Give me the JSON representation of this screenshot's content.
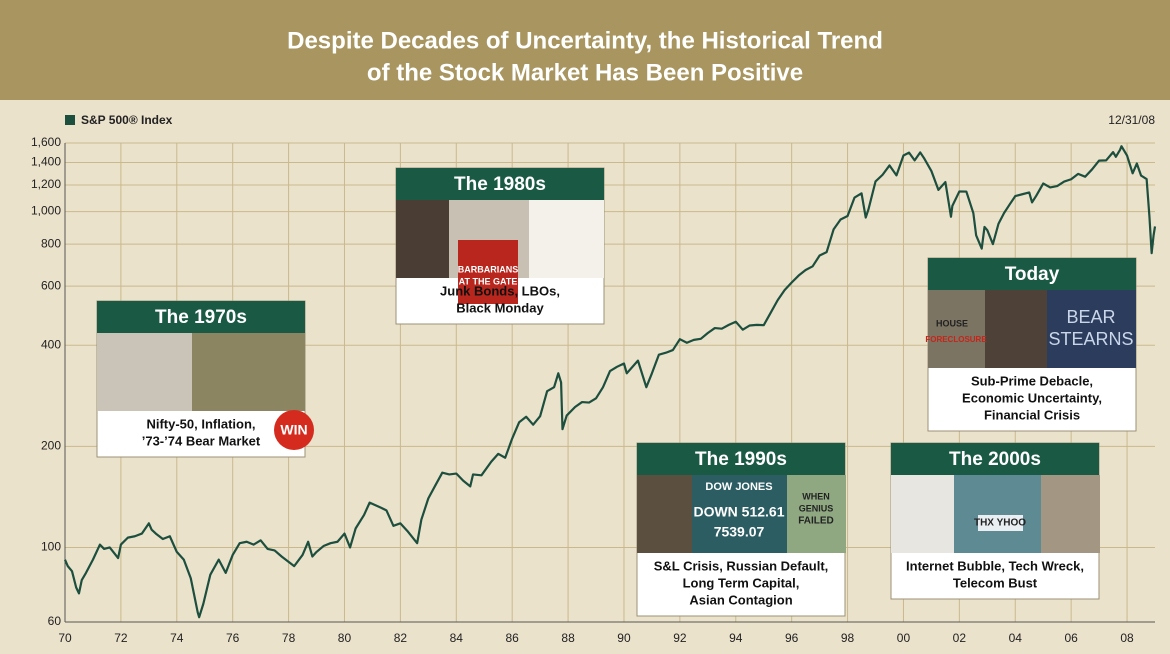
{
  "chart_data": {
    "type": "line",
    "title": [
      "Despite Decades of Uncertainty, the Historical Trend",
      "of the Stock Market Has Been Positive"
    ],
    "date_label": "12/31/08",
    "log_scale": true,
    "grid": true,
    "x": [
      1970.0,
      1970.1,
      1970.25,
      1970.4,
      1970.5,
      1970.6,
      1970.75,
      1971.0,
      1971.25,
      1971.4,
      1971.6,
      1971.9,
      1972.0,
      1972.25,
      1972.5,
      1972.75,
      1973.0,
      1973.1,
      1973.25,
      1973.5,
      1973.75,
      1974.0,
      1974.25,
      1974.5,
      1974.75,
      1974.8,
      1974.95,
      1975.2,
      1975.5,
      1975.75,
      1976.0,
      1976.25,
      1976.5,
      1976.75,
      1977.0,
      1977.25,
      1977.5,
      1977.75,
      1978.2,
      1978.5,
      1978.7,
      1978.85,
      1979.0,
      1979.25,
      1979.5,
      1979.75,
      1980.0,
      1980.2,
      1980.4,
      1980.7,
      1980.9,
      1981.25,
      1981.5,
      1981.75,
      1982.0,
      1982.25,
      1982.6,
      1982.75,
      1983.0,
      1983.25,
      1983.5,
      1983.75,
      1984.0,
      1984.25,
      1984.5,
      1984.6,
      1984.9,
      1985.25,
      1985.5,
      1985.75,
      1986.0,
      1986.25,
      1986.5,
      1986.75,
      1987.0,
      1987.25,
      1987.5,
      1987.65,
      1987.75,
      1987.8,
      1987.95,
      1988.25,
      1988.5,
      1988.75,
      1989.0,
      1989.25,
      1989.5,
      1989.75,
      1990.0,
      1990.1,
      1990.5,
      1990.8,
      1991.0,
      1991.25,
      1991.5,
      1991.75,
      1992.0,
      1992.25,
      1992.5,
      1992.75,
      1993.0,
      1993.25,
      1993.5,
      1993.75,
      1994.0,
      1994.25,
      1994.5,
      1994.75,
      1995.0,
      1995.25,
      1995.5,
      1995.75,
      1996.0,
      1996.25,
      1996.5,
      1996.75,
      1997.0,
      1997.25,
      1997.5,
      1997.75,
      1998.0,
      1998.25,
      1998.5,
      1998.65,
      1998.75,
      1999.0,
      1999.25,
      1999.5,
      1999.75,
      2000.0,
      2000.2,
      2000.4,
      2000.6,
      2000.75,
      2001.0,
      2001.25,
      2001.5,
      2001.7,
      2001.75,
      2002.0,
      2002.25,
      2002.5,
      2002.6,
      2002.8,
      2002.9,
      2003.0,
      2003.2,
      2003.4,
      2003.6,
      2003.8,
      2004.0,
      2004.25,
      2004.5,
      2004.6,
      2004.75,
      2005.0,
      2005.25,
      2005.5,
      2005.75,
      2006.0,
      2006.25,
      2006.5,
      2006.75,
      2007.0,
      2007.25,
      2007.5,
      2007.6,
      2007.75,
      2007.8,
      2008.0,
      2008.2,
      2008.35,
      2008.5,
      2008.7,
      2008.8,
      2008.88,
      2008.95,
      2009.0
    ],
    "series": [
      {
        "name": "S&P 500® Index",
        "color": "#1d4f3e",
        "values": [
          92,
          88,
          85,
          76,
          73,
          80,
          84,
          92,
          102,
          99,
          100,
          93,
          102,
          107,
          108,
          110,
          118,
          113,
          110,
          106,
          108,
          97,
          92,
          81,
          64,
          62,
          68,
          83,
          92,
          84,
          95,
          103,
          104,
          102,
          105,
          99,
          98,
          94,
          88,
          95,
          104,
          94,
          97,
          101,
          103,
          104,
          110,
          100,
          114,
          125,
          136,
          132,
          129,
          116,
          118,
          112,
          103,
          121,
          140,
          153,
          167,
          165,
          166,
          158,
          152,
          165,
          164,
          180,
          190,
          185,
          211,
          236,
          245,
          232,
          246,
          292,
          300,
          330,
          310,
          225,
          247,
          262,
          271,
          270,
          278,
          300,
          335,
          345,
          353,
          330,
          360,
          300,
          330,
          375,
          380,
          387,
          417,
          407,
          415,
          418,
          435,
          450,
          448,
          460,
          470,
          445,
          458,
          460,
          459,
          500,
          545,
          584,
          615,
          645,
          670,
          687,
          740,
          757,
          885,
          947,
          970,
          1101,
          1133,
          960,
          1017,
          1229,
          1286,
          1372,
          1282,
          1469,
          1498,
          1420,
          1500,
          1436,
          1320,
          1160,
          1224,
          965,
          1040,
          1148,
          1147,
          990,
          850,
          776,
          900,
          880,
          800,
          920,
          990,
          1050,
          1112,
          1126,
          1140,
          1065,
          1114,
          1212,
          1180,
          1191,
          1228,
          1248,
          1295,
          1270,
          1336,
          1418,
          1420,
          1503,
          1455,
          1527,
          1565,
          1468,
          1300,
          1390,
          1280,
          1250,
          968,
          752,
          850,
          903
        ]
      }
    ],
    "xlim": [
      1970,
      2009
    ],
    "ylim": [
      60,
      1600
    ],
    "xticks": [
      {
        "value": 1970,
        "label": "70"
      },
      {
        "value": 1972,
        "label": "72"
      },
      {
        "value": 1974,
        "label": "74"
      },
      {
        "value": 1976,
        "label": "76"
      },
      {
        "value": 1978,
        "label": "78"
      },
      {
        "value": 1980,
        "label": "80"
      },
      {
        "value": 1982,
        "label": "82"
      },
      {
        "value": 1984,
        "label": "84"
      },
      {
        "value": 1986,
        "label": "86"
      },
      {
        "value": 1988,
        "label": "88"
      },
      {
        "value": 1990,
        "label": "90"
      },
      {
        "value": 1992,
        "label": "92"
      },
      {
        "value": 1994,
        "label": "94"
      },
      {
        "value": 1996,
        "label": "96"
      },
      {
        "value": 1998,
        "label": "98"
      },
      {
        "value": 2000,
        "label": "00"
      },
      {
        "value": 2002,
        "label": "02"
      },
      {
        "value": 2004,
        "label": "04"
      },
      {
        "value": 2006,
        "label": "06"
      },
      {
        "value": 2008,
        "label": "08"
      }
    ],
    "yticks": [
      60,
      100,
      200,
      400,
      600,
      800,
      {
        "value": 1000,
        "label": "1,000"
      },
      {
        "value": 1200,
        "label": "1,200"
      },
      {
        "value": 1400,
        "label": "1,400"
      },
      {
        "value": 1600,
        "label": "1,600"
      }
    ],
    "annotations": [
      {
        "title": "The 1970s",
        "image_texts": [
          "WIN"
        ],
        "text": [
          "Nifty-50, Inflation,",
          "’73-’74 Bear Market"
        ]
      },
      {
        "title": "The 1980s",
        "image_texts": [
          "BARBARIANS",
          "AT THE GATE"
        ],
        "text": [
          "Junk Bonds, LBOs,",
          "Black Monday"
        ]
      },
      {
        "title": "The 1990s",
        "image_texts": [
          "DOW JONES",
          "DOWN 512.61",
          "7539.07",
          "WHEN",
          "GENIUS",
          "FAILED"
        ],
        "text": [
          "S&L Crisis, Russian Default,",
          "Long Term Capital,",
          "Asian Contagion"
        ]
      },
      {
        "title": "Today",
        "image_texts": [
          "HOUSE",
          "FORECLOSURE",
          "BEAR",
          "STEARNS"
        ],
        "text": [
          "Sub-Prime Debacle,",
          "Economic Uncertainty,",
          "Financial Crisis"
        ]
      },
      {
        "title": "The 2000s",
        "image_texts": [
          "THX YHOO"
        ],
        "text": [
          "Internet Bubble, Tech Wreck,",
          "Telecom Bust"
        ]
      }
    ]
  }
}
